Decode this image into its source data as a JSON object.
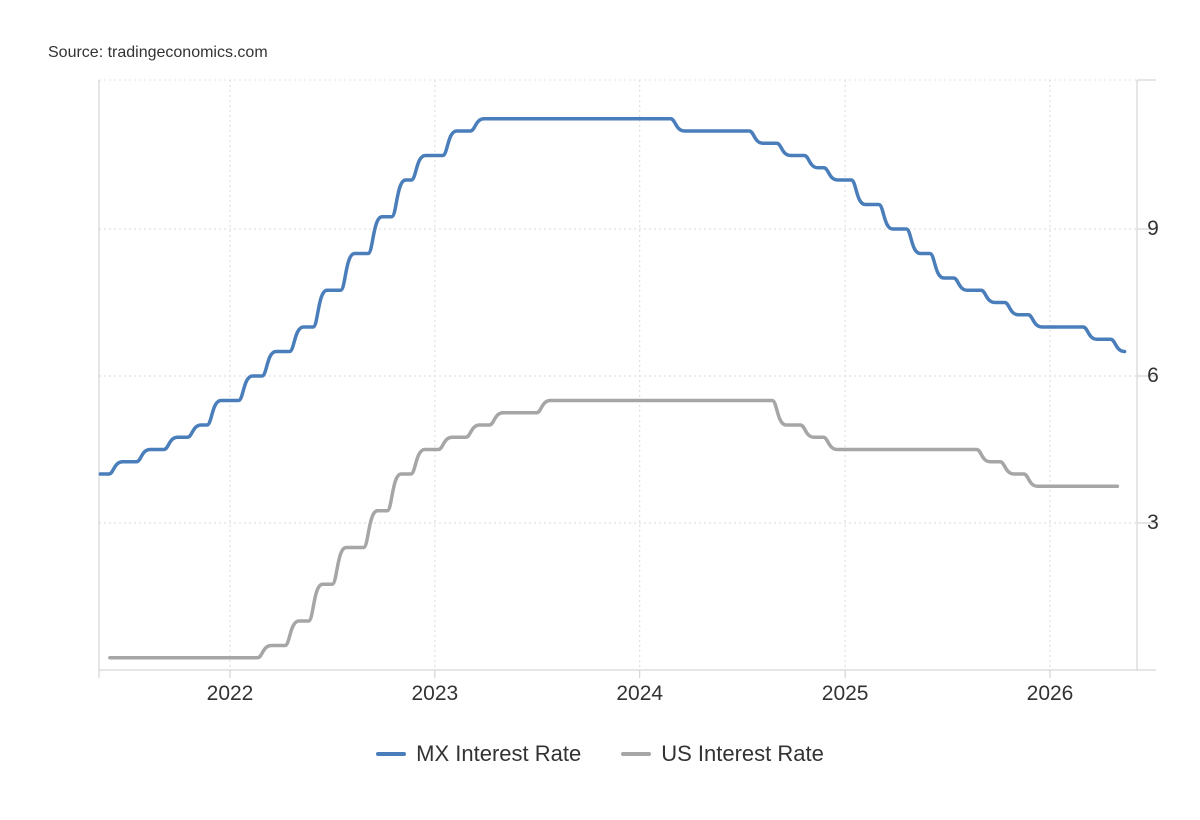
{
  "source": "Source: tradingeconomics.com",
  "chart_data": {
    "type": "line",
    "xlabel": "",
    "ylabel": "",
    "x_ticks": [
      "2022",
      "2023",
      "2024",
      "2025",
      "2026"
    ],
    "y_ticks": [
      3,
      6,
      9
    ],
    "ylim": [
      0,
      12
    ],
    "y_axis_side": "right",
    "grid": true,
    "legend_position": "bottom",
    "series": [
      {
        "name": "MX Interest Rate",
        "color": "#4a7ebb",
        "points": [
          [
            "2021-05-15",
            4.0
          ],
          [
            "2021-06-24",
            4.25
          ],
          [
            "2021-08-12",
            4.5
          ],
          [
            "2021-09-30",
            4.75
          ],
          [
            "2021-11-11",
            5.0
          ],
          [
            "2021-12-16",
            5.5
          ],
          [
            "2022-02-10",
            6.0
          ],
          [
            "2022-03-24",
            6.5
          ],
          [
            "2022-05-12",
            7.0
          ],
          [
            "2022-06-23",
            7.75
          ],
          [
            "2022-08-11",
            8.5
          ],
          [
            "2022-09-29",
            9.25
          ],
          [
            "2022-11-10",
            10.0
          ],
          [
            "2022-12-15",
            10.5
          ],
          [
            "2023-02-09",
            11.0
          ],
          [
            "2023-03-30",
            11.25
          ],
          [
            "2024-03-21",
            11.0
          ],
          [
            "2024-06-27",
            11.0
          ],
          [
            "2024-08-08",
            10.75
          ],
          [
            "2024-09-26",
            10.5
          ],
          [
            "2024-11-14",
            10.25
          ],
          [
            "2024-12-19",
            10.0
          ],
          [
            "2025-02-06",
            9.5
          ],
          [
            "2025-03-27",
            9.0
          ],
          [
            "2025-05-15",
            8.5
          ],
          [
            "2025-06-26",
            8.0
          ],
          [
            "2025-08-07",
            7.75
          ],
          [
            "2025-09-25",
            7.5
          ],
          [
            "2025-11-06",
            7.25
          ],
          [
            "2025-12-18",
            7.0
          ],
          [
            "2026-03-26",
            6.75
          ],
          [
            "2026-05-14",
            6.5
          ]
        ]
      },
      {
        "name": "US Interest Rate",
        "color": "#a6a6a6",
        "points": [
          [
            "2021-06-01",
            0.25
          ],
          [
            "2022-03-16",
            0.5
          ],
          [
            "2022-05-04",
            1.0
          ],
          [
            "2022-06-15",
            1.75
          ],
          [
            "2022-07-27",
            2.5
          ],
          [
            "2022-09-21",
            3.25
          ],
          [
            "2022-11-02",
            4.0
          ],
          [
            "2022-12-14",
            4.5
          ],
          [
            "2023-02-01",
            4.75
          ],
          [
            "2023-03-22",
            5.0
          ],
          [
            "2023-05-03",
            5.25
          ],
          [
            "2023-07-26",
            5.5
          ],
          [
            "2024-09-18",
            5.0
          ],
          [
            "2024-11-07",
            4.75
          ],
          [
            "2024-12-18",
            4.5
          ],
          [
            "2025-09-17",
            4.25
          ],
          [
            "2025-10-29",
            4.0
          ],
          [
            "2025-12-10",
            3.75
          ],
          [
            "2026-05-01",
            3.75
          ]
        ]
      }
    ]
  }
}
